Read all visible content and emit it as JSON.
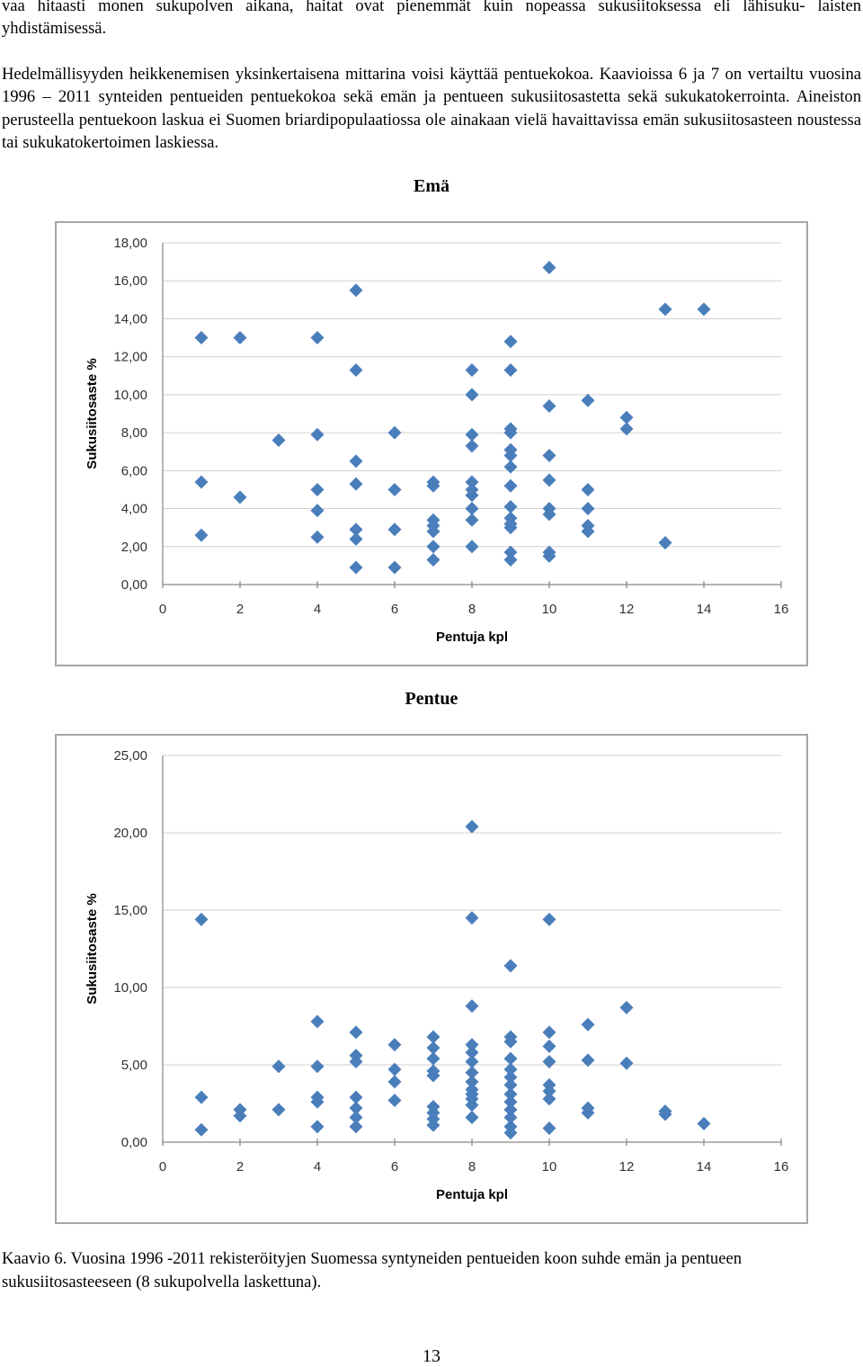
{
  "page": {
    "para1": "vaa hitaasti monen sukupolven aikana, haitat ovat pienemmät kuin nopeassa sukusiitoksessa eli lähisuku- laisten yhdistämisessä.",
    "para2": "Hedelmällisyyden heikkenemisen yksinkertaisena mittarina voisi käyttää pentuekokoa. Kaavioissa 6 ja 7 on vertailtu vuosina 1996 – 2011 synteiden pentueiden pentuekokoa sekä emän ja pentueen sukusiitosastetta sekä sukukatokerrointa. Aineiston perusteella pentuekoon laskua ei Suomen briardipopulaatiossa ole ainakaan vielä havaittavissa emän sukusiitosasteen noustessa tai sukukatokertoimen laskiessa.",
    "caption": "Kaavio 6. Vuosina 1996 -2011 rekisteröityjen Suomessa syntyneiden pentueiden koon suhde emän ja pentueen sukusiitosasteeseen (8 sukupolvella laskettuna).",
    "page_number": "13",
    "marker_color": "#4a7ebb"
  },
  "chart_data": [
    {
      "type": "scatter",
      "title": "Emä",
      "xlabel": "Pentuja kpl",
      "ylabel": "Sukusiitosaste %",
      "xlim": [
        0,
        16
      ],
      "ylim": [
        0,
        18
      ],
      "xticks": [
        0,
        2,
        4,
        6,
        8,
        10,
        12,
        14,
        16
      ],
      "yticks": [
        0,
        2,
        4,
        6,
        8,
        10,
        12,
        14,
        16,
        18
      ],
      "ytick_labels": [
        "0,00",
        "2,00",
        "4,00",
        "6,00",
        "8,00",
        "10,00",
        "12,00",
        "14,00",
        "16,00",
        "18,00"
      ],
      "grid": true,
      "points": [
        [
          1,
          13.0
        ],
        [
          1,
          5.4
        ],
        [
          1,
          2.6
        ],
        [
          2,
          13.0
        ],
        [
          2,
          4.6
        ],
        [
          3,
          7.6
        ],
        [
          4,
          13.0
        ],
        [
          4,
          7.9
        ],
        [
          4,
          5.0
        ],
        [
          4,
          3.9
        ],
        [
          4,
          2.5
        ],
        [
          5,
          15.5
        ],
        [
          5,
          11.3
        ],
        [
          5,
          6.5
        ],
        [
          5,
          5.3
        ],
        [
          5,
          2.9
        ],
        [
          5,
          2.4
        ],
        [
          5,
          0.9
        ],
        [
          6,
          8.0
        ],
        [
          6,
          5.0
        ],
        [
          6,
          2.9
        ],
        [
          6,
          0.9
        ],
        [
          7,
          5.4
        ],
        [
          7,
          5.2
        ],
        [
          7,
          3.4
        ],
        [
          7,
          3.1
        ],
        [
          7,
          2.8
        ],
        [
          7,
          2.0
        ],
        [
          7,
          1.3
        ],
        [
          8,
          11.3
        ],
        [
          8,
          10.0
        ],
        [
          8,
          7.9
        ],
        [
          8,
          7.3
        ],
        [
          8,
          5.4
        ],
        [
          8,
          5.0
        ],
        [
          8,
          4.7
        ],
        [
          8,
          4.0
        ],
        [
          8,
          3.4
        ],
        [
          8,
          2.0
        ],
        [
          9,
          12.8
        ],
        [
          9,
          11.3
        ],
        [
          9,
          8.2
        ],
        [
          9,
          8.0
        ],
        [
          9,
          7.1
        ],
        [
          9,
          6.8
        ],
        [
          9,
          6.2
        ],
        [
          9,
          5.2
        ],
        [
          9,
          4.1
        ],
        [
          9,
          3.5
        ],
        [
          9,
          3.2
        ],
        [
          9,
          3.0
        ],
        [
          9,
          1.7
        ],
        [
          9,
          1.3
        ],
        [
          10,
          16.7
        ],
        [
          10,
          9.4
        ],
        [
          10,
          6.8
        ],
        [
          10,
          5.5
        ],
        [
          10,
          4.0
        ],
        [
          10,
          3.7
        ],
        [
          10,
          1.7
        ],
        [
          10,
          1.5
        ],
        [
          11,
          9.7
        ],
        [
          11,
          5.0
        ],
        [
          11,
          4.0
        ],
        [
          11,
          3.1
        ],
        [
          11,
          2.8
        ],
        [
          12,
          8.8
        ],
        [
          12,
          8.2
        ],
        [
          13,
          14.5
        ],
        [
          13,
          2.2
        ],
        [
          14,
          14.5
        ]
      ]
    },
    {
      "type": "scatter",
      "title": "Pentue",
      "xlabel": "Pentuja kpl",
      "ylabel": "Sukusiitosaste %",
      "xlim": [
        0,
        16
      ],
      "ylim": [
        0,
        25
      ],
      "xticks": [
        0,
        2,
        4,
        6,
        8,
        10,
        12,
        14,
        16
      ],
      "yticks": [
        0,
        5,
        10,
        15,
        20,
        25
      ],
      "ytick_labels": [
        "0,00",
        "5,00",
        "10,00",
        "15,00",
        "20,00",
        "25,00"
      ],
      "grid": true,
      "points": [
        [
          1,
          14.4
        ],
        [
          1,
          2.9
        ],
        [
          1,
          0.8
        ],
        [
          2,
          2.1
        ],
        [
          2,
          1.7
        ],
        [
          3,
          4.9
        ],
        [
          3,
          2.1
        ],
        [
          4,
          7.8
        ],
        [
          4,
          4.9
        ],
        [
          4,
          2.9
        ],
        [
          4,
          2.6
        ],
        [
          4,
          1.0
        ],
        [
          5,
          7.1
        ],
        [
          5,
          5.6
        ],
        [
          5,
          5.2
        ],
        [
          5,
          2.9
        ],
        [
          5,
          2.2
        ],
        [
          5,
          1.6
        ],
        [
          5,
          1.0
        ],
        [
          6,
          6.3
        ],
        [
          6,
          4.7
        ],
        [
          6,
          3.9
        ],
        [
          6,
          2.7
        ],
        [
          7,
          6.8
        ],
        [
          7,
          6.1
        ],
        [
          7,
          5.4
        ],
        [
          7,
          4.6
        ],
        [
          7,
          4.3
        ],
        [
          7,
          2.3
        ],
        [
          7,
          1.9
        ],
        [
          7,
          1.5
        ],
        [
          7,
          1.1
        ],
        [
          8,
          20.4
        ],
        [
          8,
          14.5
        ],
        [
          8,
          8.8
        ],
        [
          8,
          6.3
        ],
        [
          8,
          5.8
        ],
        [
          8,
          5.2
        ],
        [
          8,
          4.5
        ],
        [
          8,
          3.9
        ],
        [
          8,
          3.4
        ],
        [
          8,
          3.1
        ],
        [
          8,
          2.8
        ],
        [
          8,
          2.4
        ],
        [
          8,
          1.6
        ],
        [
          9,
          11.4
        ],
        [
          9,
          6.8
        ],
        [
          9,
          6.5
        ],
        [
          9,
          5.4
        ],
        [
          9,
          4.7
        ],
        [
          9,
          4.2
        ],
        [
          9,
          3.7
        ],
        [
          9,
          3.1
        ],
        [
          9,
          2.6
        ],
        [
          9,
          2.1
        ],
        [
          9,
          1.6
        ],
        [
          9,
          1.0
        ],
        [
          9,
          0.6
        ],
        [
          10,
          14.4
        ],
        [
          10,
          7.1
        ],
        [
          10,
          6.2
        ],
        [
          10,
          5.2
        ],
        [
          10,
          3.7
        ],
        [
          10,
          3.3
        ],
        [
          10,
          2.8
        ],
        [
          10,
          0.9
        ],
        [
          11,
          7.6
        ],
        [
          11,
          5.3
        ],
        [
          11,
          2.2
        ],
        [
          11,
          1.9
        ],
        [
          12,
          8.7
        ],
        [
          12,
          5.1
        ],
        [
          13,
          2.0
        ],
        [
          13,
          1.8
        ],
        [
          14,
          1.2
        ]
      ]
    }
  ]
}
